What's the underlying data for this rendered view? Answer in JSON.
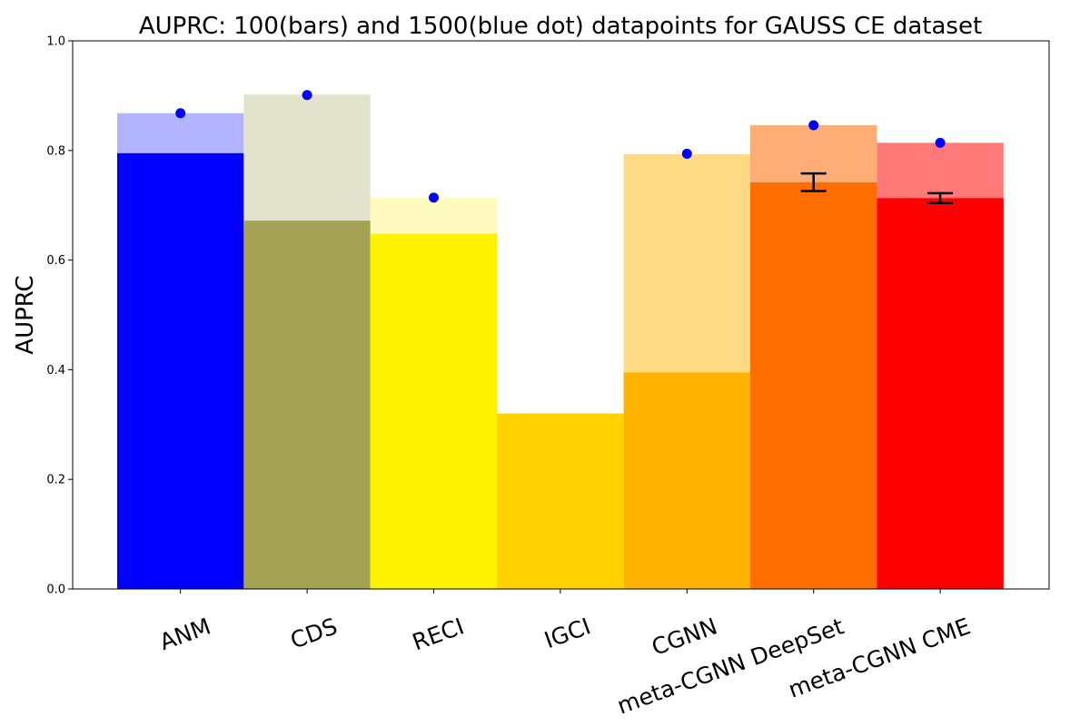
{
  "chart_data": {
    "type": "bar",
    "title": "AUPRC: 100(bars) and 1500(blue dot) datapoints for GAUSS CE dataset",
    "ylabel": "AUPRC",
    "xlabel": "",
    "ylim": [
      0.0,
      1.0
    ],
    "yticks": [
      "0.0",
      "0.2",
      "0.4",
      "0.6",
      "0.8",
      "1.0"
    ],
    "grid": false,
    "categories": [
      "ANM",
      "CDS",
      "RECI",
      "IGCI",
      "CGNN",
      "meta-CGNN DeepSet",
      "meta-CGNN CME"
    ],
    "series": [
      {
        "values": [
          0.795,
          0.672,
          0.648,
          0.32,
          0.395,
          0.742,
          0.713
        ]
      },
      {
        "values": [
          0.868,
          0.902,
          0.714,
          0.32,
          0.793,
          0.846,
          0.814
        ]
      },
      {
        "values": [
          0.868,
          0.901,
          0.714,
          null,
          0.794,
          0.846,
          0.814
        ]
      }
    ],
    "error_bars": [
      null,
      null,
      null,
      null,
      null,
      0.016,
      0.009
    ],
    "colors": {
      "bars": [
        "#0000ff",
        "#a5a455",
        "#fff200",
        "#ffd200",
        "#ffb200",
        "#ff6e00",
        "#ff0000"
      ],
      "light_bars": [
        "#b3b4ff",
        "#e3e2cd",
        "#fffac0",
        "#ffd200",
        "#ffda84",
        "#ffad77",
        "#ff7978"
      ],
      "dot": "#0000ff"
    }
  }
}
